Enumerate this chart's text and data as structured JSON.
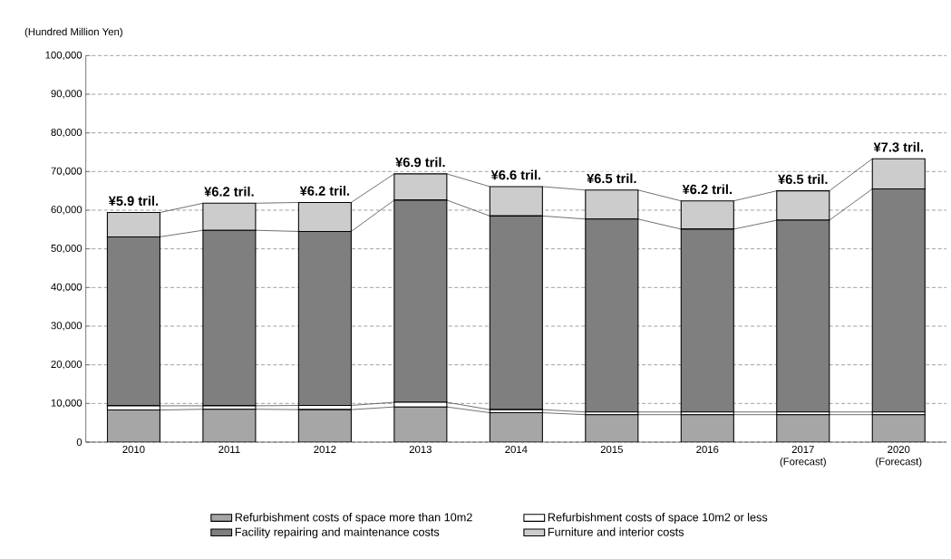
{
  "chart_data": {
    "type": "bar",
    "stacked": true,
    "ylabel": "(Hundred Million Yen)",
    "categories": [
      "2010",
      "2011",
      "2012",
      "2013",
      "2014",
      "2015",
      "2016",
      "2017 (Forecast)",
      "2020 (Forecast)"
    ],
    "series": [
      {
        "name": "Refurbishment costs of space more than 10m2",
        "color": "#a6a6a6",
        "values": [
          8300,
          8500,
          8400,
          9100,
          7600,
          7100,
          7100,
          7100,
          7100
        ]
      },
      {
        "name": "Refurbishment costs of space 10m2 or less",
        "color": "#ffffff",
        "values": [
          1100,
          900,
          1100,
          1200,
          800,
          700,
          700,
          700,
          700
        ]
      },
      {
        "name": "Facility repairing and maintenance costs",
        "color": "#7f7f7f",
        "values": [
          43700,
          45400,
          45000,
          52300,
          50100,
          49900,
          47300,
          49600,
          57700
        ]
      },
      {
        "name": "Furniture and interior costs",
        "color": "#cccccc",
        "values": [
          6300,
          7000,
          7500,
          6800,
          7600,
          7500,
          7300,
          7600,
          7800
        ]
      }
    ],
    "annotations": [
      {
        "text": "¥5.9 tril.",
        "x": "2010",
        "y": 59400
      },
      {
        "text": "¥6.2 tril.",
        "x": "2011",
        "y": 61800
      },
      {
        "text": "¥6.2 tril.",
        "x": "2012",
        "y": 62000
      },
      {
        "text": "¥6.9 tril.",
        "x": "2013",
        "y": 69400
      },
      {
        "text": "¥6.6 tril.",
        "x": "2014",
        "y": 66100
      },
      {
        "text": "¥6.5 tril.",
        "x": "2015",
        "y": 65200
      },
      {
        "text": "¥6.2 tril.",
        "x": "2016",
        "y": 62400
      },
      {
        "text": "¥6.5 tril.",
        "x": "2017 (Forecast)",
        "y": 65000
      },
      {
        "text": "¥7.3 tril.",
        "x": "2020 (Forecast)",
        "y": 73300
      }
    ],
    "ylim": [
      0,
      100000
    ],
    "yticks": [
      0,
      {
        "value": 10000,
        "label": "10,000"
      },
      {
        "value": 20000,
        "label": "20,000"
      },
      {
        "value": 30000,
        "label": "30,000"
      },
      {
        "value": 40000,
        "label": "40,000"
      },
      {
        "value": 50000,
        "label": "50,000"
      },
      {
        "value": 60000,
        "label": "60,000"
      },
      {
        "value": 70000,
        "label": "70,000"
      },
      {
        "value": 80000,
        "label": "80,000"
      },
      {
        "value": 90000,
        "label": "90,000"
      },
      {
        "value": 100000,
        "label": "100,000"
      }
    ],
    "grid": "y",
    "legend": "bottom"
  }
}
